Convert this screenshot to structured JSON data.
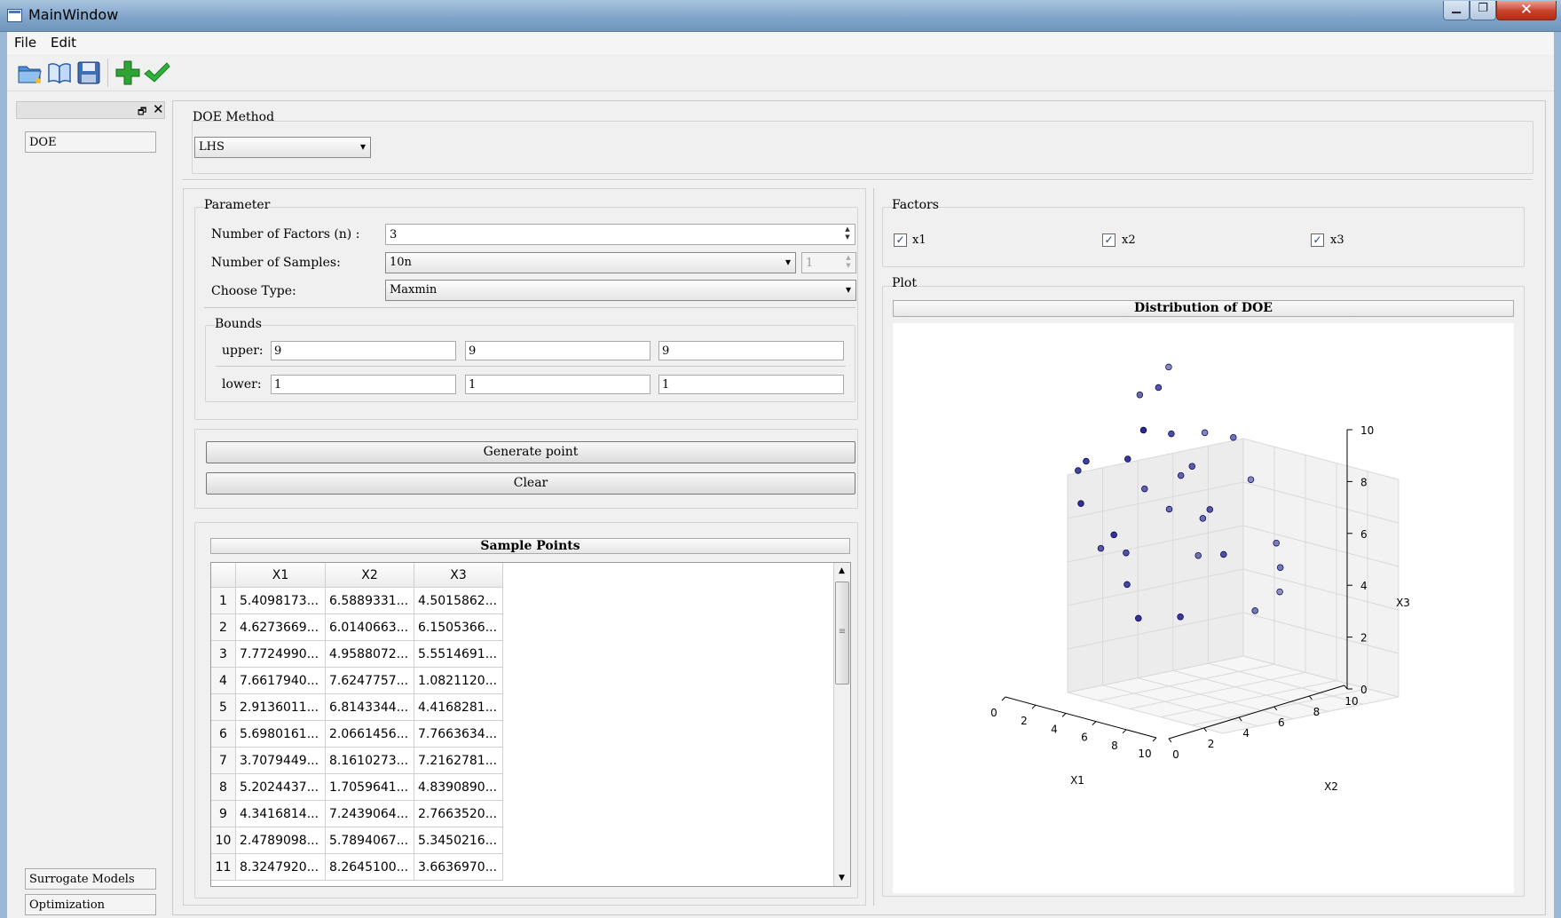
{
  "window": {
    "title": "MainWindow",
    "min_label": "▁",
    "max_label": "❐",
    "close_label": "✕"
  },
  "menu": {
    "file": "File",
    "edit": "Edit"
  },
  "toolbar": {
    "icons": [
      "open-folder-icon",
      "book-icon",
      "save-icon",
      "add-icon",
      "check-icon"
    ]
  },
  "dock": {
    "float_label": "🗗",
    "close_label": "✕",
    "items": [
      "DOE",
      "Surrogate Models",
      "Optimization"
    ]
  },
  "doe_method": {
    "title": "DOE Method",
    "value": "LHS"
  },
  "parameter": {
    "title": "Parameter",
    "factors_label": "Number of Factors (n) :",
    "factors_value": "3",
    "samples_label": "Number of Samples:",
    "samples_value": "10n",
    "samples_spin": "1",
    "type_label": "Choose Type:",
    "type_value": "Maxmin"
  },
  "bounds": {
    "title": "Bounds",
    "upper_label": "upper:",
    "lower_label": "lower:",
    "upper": [
      "9",
      "9",
      "9"
    ],
    "lower": [
      "1",
      "1",
      "1"
    ]
  },
  "buttons": {
    "generate": "Generate point",
    "clear": "Clear"
  },
  "table": {
    "title": "Sample Points",
    "columns": [
      "X1",
      "X2",
      "X3"
    ],
    "rows": [
      [
        "1",
        "5.4098173...",
        "6.5889331...",
        "4.5015862..."
      ],
      [
        "2",
        "4.6273669...",
        "6.0140663...",
        "6.1505366..."
      ],
      [
        "3",
        "7.7724990...",
        "4.9588072...",
        "5.5514691..."
      ],
      [
        "4",
        "7.6617940...",
        "7.6247757...",
        "1.0821120..."
      ],
      [
        "5",
        "2.9136011...",
        "6.8143344...",
        "4.4168281..."
      ],
      [
        "6",
        "5.6980161...",
        "2.0661456...",
        "7.7663634..."
      ],
      [
        "7",
        "3.7079449...",
        "8.1610273...",
        "7.2162781..."
      ],
      [
        "8",
        "5.2024437...",
        "1.7059641...",
        "4.8390890..."
      ],
      [
        "9",
        "4.3416814...",
        "7.2439064...",
        "2.7663520..."
      ],
      [
        "10",
        "2.4789098...",
        "5.7894067...",
        "5.3450216..."
      ],
      [
        "11",
        "8.3247920...",
        "8.2645100...",
        "3.6636970..."
      ]
    ]
  },
  "factors": {
    "title": "Factors",
    "items": [
      "x1",
      "x2",
      "x3"
    ],
    "check": "✓",
    "checked": [
      true,
      true,
      true
    ]
  },
  "plot": {
    "title": "Plot"
  },
  "chart_data": {
    "type": "scatter",
    "title": "Distribution of DOE",
    "xlabel": "X1",
    "ylabel": "X2",
    "zlabel": "X3",
    "xlim": [
      0,
      10
    ],
    "ylim": [
      0,
      10
    ],
    "zlim": [
      0,
      10
    ],
    "xticks": [
      "0",
      "2",
      "4",
      "6",
      "8",
      "10"
    ],
    "yticks": [
      "0",
      "2",
      "4",
      "6",
      "8",
      "10"
    ],
    "zticks": [
      "0",
      "2",
      "4",
      "6",
      "8",
      "10"
    ],
    "grid": true,
    "marker_color": "#1f1f8c",
    "points": [
      [
        5.4098,
        6.5889,
        4.5016
      ],
      [
        4.6274,
        6.0141,
        6.1505
      ],
      [
        7.7725,
        4.9588,
        5.5515
      ],
      [
        7.6618,
        7.6248,
        1.0821
      ],
      [
        2.9136,
        6.8143,
        4.4168
      ],
      [
        5.698,
        2.0661,
        7.7664
      ],
      [
        3.7079,
        8.161,
        7.2163
      ],
      [
        5.2024,
        1.706,
        4.8391
      ],
      [
        4.3417,
        7.2439,
        2.7664
      ],
      [
        2.4789,
        5.7894,
        5.345
      ],
      [
        8.3248,
        8.2645,
        3.6637
      ],
      [
        1.2,
        3.1,
        6.4
      ],
      [
        6.8,
        3.6,
        8.6
      ],
      [
        3.1,
        4.2,
        3.3
      ],
      [
        8.8,
        2.4,
        2.1
      ],
      [
        1.8,
        6.1,
        8.8
      ],
      [
        6.2,
        5.3,
        6.9
      ],
      [
        4.1,
        3.4,
        2.4
      ],
      [
        7.3,
        6.7,
        7.9
      ],
      [
        9.1,
        4.6,
        4.1
      ],
      [
        2.2,
        2.7,
        7.0
      ],
      [
        0.8,
        8.6,
        9.2
      ],
      [
        5.9,
        8.9,
        5.6
      ],
      [
        9.6,
        7.4,
        3.1
      ],
      [
        3.6,
        1.2,
        5.9
      ],
      [
        6.6,
        1.9,
        1.8
      ],
      [
        8.1,
        0.9,
        9.5
      ],
      [
        0.5,
        5.0,
        2.9
      ],
      [
        4.9,
        4.5,
        9.9
      ],
      [
        7.0,
        9.6,
        1.3
      ]
    ]
  }
}
